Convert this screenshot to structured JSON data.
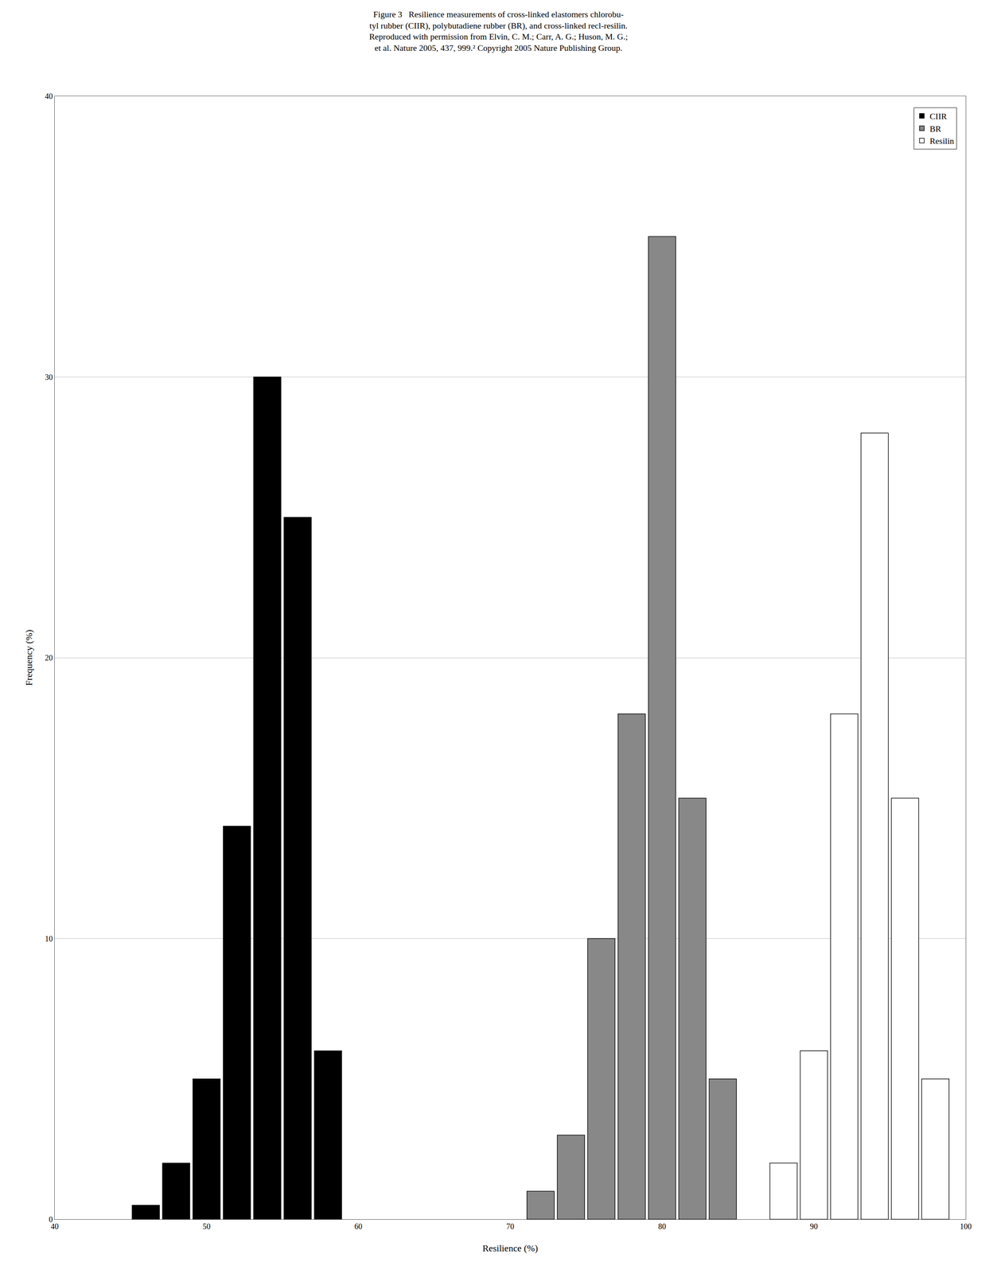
{
  "chart_data": {
    "type": "bar",
    "title": "Figure 3   Resilience measurements of cross-linked elastomers chlorobu-\ntyl rubber (CIIR), polybutadiene rubber (BR), and cross-linked recl-resilin.\nReproduced with permission from Elvin, C. M.; Carr, A. G.; Huson, M. G.;\net al. Nature 2005, 437, 999.² Copyright 2005 Nature Publishing Group.",
    "xlabel": "Resilience (%)",
    "ylabel": "Frequency (%)",
    "xlim": [
      40,
      100
    ],
    "ylim": [
      0,
      40
    ],
    "xticks": [
      40,
      50,
      60,
      70,
      80,
      90,
      100
    ],
    "yticks": [
      0,
      10,
      20,
      30,
      40
    ],
    "grid": "y",
    "legend": "upper right",
    "series": [
      {
        "name": "CIIR",
        "color": "#000000",
        "x": [
          46,
          48,
          50,
          52,
          54,
          56,
          58
        ],
        "values": [
          0.5,
          2,
          5,
          14,
          30,
          25,
          6
        ]
      },
      {
        "name": "BR",
        "color": "#888888",
        "x": [
          72,
          74,
          76,
          78,
          80,
          82,
          84
        ],
        "values": [
          1,
          3,
          10,
          18,
          35,
          15,
          5
        ]
      },
      {
        "name": "Resilin",
        "color": "#ffffff",
        "x": [
          88,
          90,
          92,
          94,
          96,
          98
        ],
        "values": [
          2,
          6,
          18,
          28,
          15,
          5
        ]
      }
    ]
  }
}
